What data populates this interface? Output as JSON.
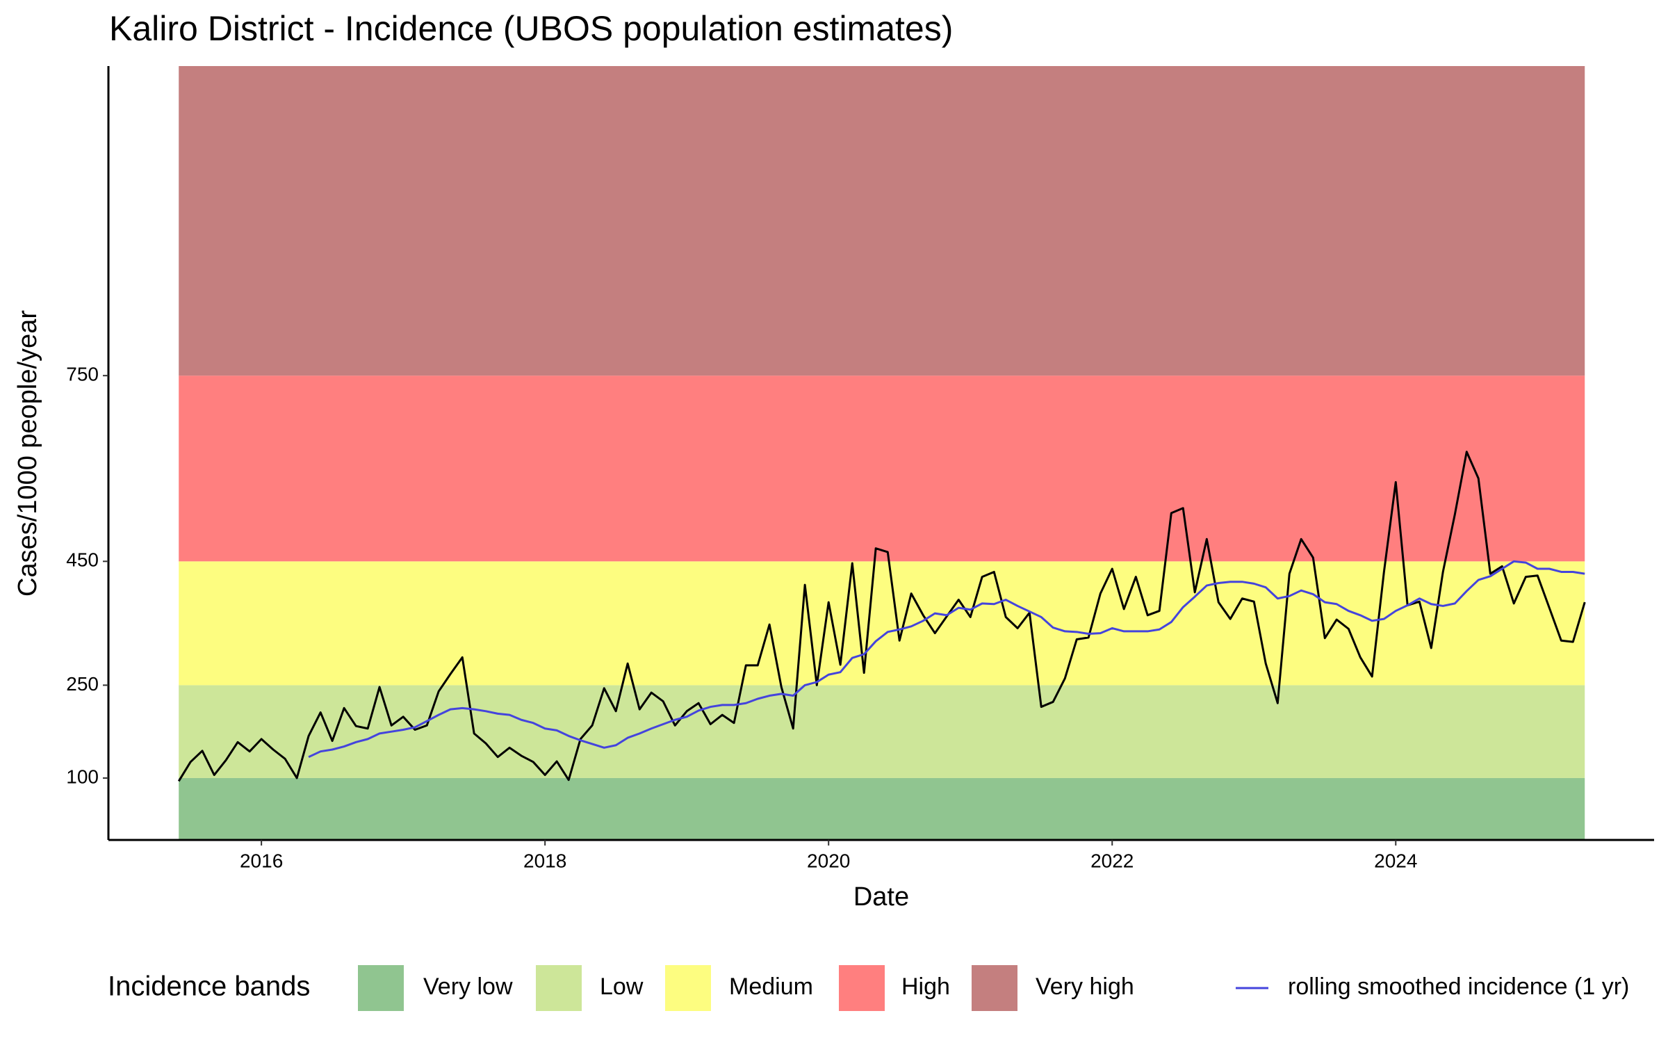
{
  "chart_data": {
    "type": "line",
    "title": "Kaliro District - Incidence (UBOS population estimates)",
    "x_label": "Date",
    "y_label": "Cases/1000 people/year",
    "xlim": [
      2014.921,
      2025.822
    ],
    "xticks": [
      2016,
      2018,
      2020,
      2022,
      2024
    ],
    "ylim": [
      0,
      1250
    ],
    "yticks": [
      100,
      250,
      450,
      750
    ],
    "legend_position": "bottom",
    "legend_title": "Incidence bands",
    "bands": [
      {
        "name": "Very low",
        "color": "#90c590",
        "range": [
          0,
          100
        ]
      },
      {
        "name": "Low",
        "color": "#cde699",
        "range": [
          100,
          250
        ]
      },
      {
        "name": "Medium",
        "color": "#fdfd80",
        "range": [
          250,
          450
        ]
      },
      {
        "name": "High",
        "color": "#ff7f7f",
        "range": [
          450,
          750
        ]
      },
      {
        "name": "Very high",
        "color": "#c47f7f",
        "range": [
          750,
          1250
        ]
      }
    ],
    "band_xlim": [
      2015.417,
      2025.333
    ],
    "x": [
      2015.417,
      2015.5,
      2015.583,
      2015.667,
      2015.75,
      2015.833,
      2015.917,
      2016,
      2016.083,
      2016.167,
      2016.25,
      2016.333,
      2016.417,
      2016.5,
      2016.583,
      2016.667,
      2016.75,
      2016.833,
      2016.917,
      2017,
      2017.083,
      2017.167,
      2017.25,
      2017.333,
      2017.417,
      2017.5,
      2017.583,
      2017.667,
      2017.75,
      2017.833,
      2017.917,
      2018,
      2018.083,
      2018.167,
      2018.25,
      2018.333,
      2018.417,
      2018.5,
      2018.583,
      2018.667,
      2018.75,
      2018.833,
      2018.917,
      2019,
      2019.083,
      2019.167,
      2019.25,
      2019.333,
      2019.417,
      2019.5,
      2019.583,
      2019.667,
      2019.75,
      2019.833,
      2019.917,
      2020,
      2020.083,
      2020.167,
      2020.25,
      2020.333,
      2020.417,
      2020.5,
      2020.583,
      2020.667,
      2020.75,
      2020.833,
      2020.917,
      2021,
      2021.083,
      2021.167,
      2021.25,
      2021.333,
      2021.417,
      2021.5,
      2021.583,
      2021.667,
      2021.75,
      2021.833,
      2021.917,
      2022,
      2022.083,
      2022.167,
      2022.25,
      2022.333,
      2022.417,
      2022.5,
      2022.583,
      2022.667,
      2022.75,
      2022.833,
      2022.917,
      2023,
      2023.083,
      2023.167,
      2023.25,
      2023.333,
      2023.417,
      2023.5,
      2023.583,
      2023.667,
      2023.75,
      2023.833,
      2023.917,
      2024,
      2024.083,
      2024.167,
      2024.25,
      2024.333,
      2024.417,
      2024.5,
      2024.583,
      2024.667,
      2024.75,
      2024.833,
      2024.917,
      2025,
      2025.083,
      2025.167,
      2025.25,
      2025.333
    ],
    "series": [
      {
        "color": "#000000",
        "values": [
          95,
          126,
          144,
          105,
          129,
          158,
          143,
          163,
          146,
          131,
          100,
          168,
          206,
          160,
          213,
          184,
          180,
          247,
          185,
          199,
          178,
          185,
          240,
          268,
          295,
          172,
          156,
          134,
          149,
          136,
          126,
          105,
          127,
          97,
          163,
          185,
          245,
          208,
          285,
          211,
          238,
          224,
          185,
          208,
          221,
          187,
          202,
          189,
          282,
          282,
          348,
          247,
          180,
          412,
          250,
          384,
          283,
          447,
          270,
          471,
          465,
          322,
          398,
          363,
          334,
          361,
          388,
          360,
          425,
          433,
          360,
          342,
          367,
          215,
          223,
          261,
          324,
          327,
          398,
          438,
          373,
          425,
          363,
          370,
          528,
          536,
          400,
          486,
          384,
          357,
          390,
          385,
          285,
          221,
          430,
          486,
          456,
          326,
          356,
          341,
          295,
          264,
          433,
          578,
          379,
          385,
          310,
          433,
          526,
          627,
          584,
          430,
          442,
          382,
          425,
          427,
          375,
          322,
          320,
          384
        ]
      },
      {
        "name": "rolling smoothed incidence (1 yr)",
        "color": "#4444dd",
        "values": [
          null,
          null,
          null,
          null,
          null,
          null,
          null,
          null,
          null,
          null,
          null,
          134,
          143,
          146,
          151,
          158,
          163,
          172,
          175,
          178,
          182,
          192,
          202,
          211,
          213,
          211,
          208,
          204,
          202,
          194,
          189,
          180,
          177,
          168,
          161,
          155,
          149,
          153,
          165,
          172,
          180,
          187,
          194,
          199,
          209,
          215,
          218,
          218,
          221,
          228,
          233,
          236,
          233,
          250,
          255,
          267,
          271,
          294,
          300,
          321,
          336,
          340,
          345,
          354,
          366,
          363,
          375,
          372,
          382,
          381,
          388,
          378,
          369,
          360,
          343,
          337,
          336,
          333,
          334,
          342,
          337,
          337,
          337,
          340,
          352,
          376,
          393,
          411,
          415,
          417,
          417,
          414,
          408,
          390,
          394,
          403,
          397,
          384,
          381,
          370,
          363,
          354,
          357,
          370,
          379,
          390,
          381,
          378,
          382,
          402,
          420,
          426,
          438,
          450,
          448,
          438,
          438,
          433,
          433,
          430
        ]
      }
    ]
  }
}
